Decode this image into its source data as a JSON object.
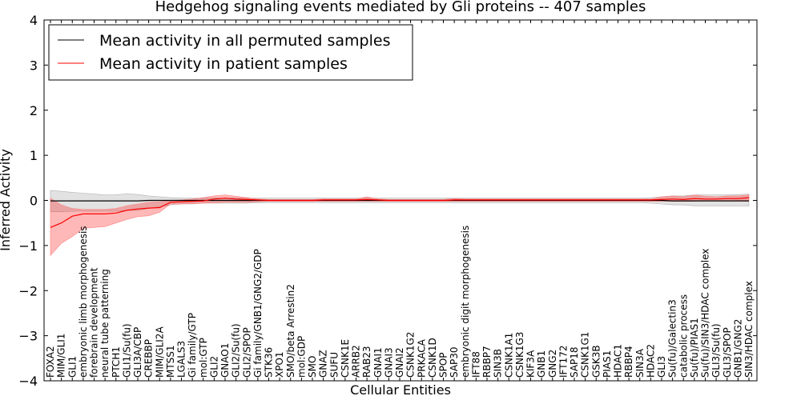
{
  "chart_data": {
    "type": "line",
    "title": "Hedgehog signaling events mediated by Gli proteins -- 407 samples",
    "xlabel": "Cellular Entities",
    "ylabel": "Inferred Activity",
    "ylim": [
      -4,
      4
    ],
    "yticks": [
      "−4",
      "−3",
      "−2",
      "−1",
      "0",
      "1",
      "2",
      "3",
      "4"
    ],
    "grid": false,
    "legend_position": "top-left",
    "categories": [
      "FOXA2",
      "MIM/GLI1",
      "GLI1",
      "embryonic limb morphogenesis",
      "forebrain development",
      "neural tube patterning",
      "PTCH1",
      "GLI1/Su(fu)",
      "GLI3A/CBP",
      "CREBBP",
      "MIM/GLI2A",
      "MTSS1",
      "LGALS3",
      "Gi family/GTP",
      "mol:GTP",
      "GLI2",
      "GNAO1",
      "GLI2/Su(fu)",
      "GLI2/SPOP",
      "Gi family/GNB1/GNG2/GDP",
      "STK36",
      "XPO1",
      "SMO/beta Arrestin2",
      "mol:GDP",
      "SMO",
      "GNAZ",
      "SUFU",
      "CSNK1E",
      "ARRB2",
      "RAB23",
      "GNAI1",
      "GNAI3",
      "GNAI2",
      "CSNK1G2",
      "PRKACA",
      "CSNK1D",
      "SPOP",
      "SAP30",
      "embryonic digit morphogenesis",
      "IFT88",
      "RBBP7",
      "SIN3B",
      "CSNK1A1",
      "CSNK1G3",
      "KIF3A",
      "GNB1",
      "GNG2",
      "IFT172",
      "SAP18",
      "CSNK1G1",
      "GSK3B",
      "PIAS1",
      "HDAC1",
      "RBBP4",
      "SIN3A",
      "HDAC2",
      "GLI3",
      "Su(fu)/Galectin3",
      "catabolic process",
      "Su(fu)/PIAS1",
      "Su(fu)/SIN3/HDAC complex",
      "GLI3/Su(fu)",
      "GLI3/SPOP",
      "GNB1/GNG2",
      "SIN3/HDAC complex"
    ],
    "series": [
      {
        "name": "Mean activity in all permuted samples",
        "color": "#000000",
        "values": [
          -0.01,
          -0.01,
          -0.01,
          -0.01,
          -0.01,
          -0.01,
          -0.01,
          -0.01,
          -0.01,
          0.0,
          0.0,
          0.0,
          0.0,
          0.0,
          0.0,
          0.0,
          0.0,
          0.0,
          0.0,
          0.0,
          0.0,
          0.0,
          0.0,
          0.0,
          0.0,
          0.0,
          0.0,
          0.0,
          0.0,
          0.0,
          0.0,
          0.0,
          0.0,
          0.0,
          0.0,
          0.0,
          0.0,
          0.0,
          0.0,
          0.0,
          0.0,
          0.0,
          0.0,
          0.0,
          0.0,
          0.0,
          0.0,
          0.0,
          0.0,
          0.0,
          0.0,
          0.0,
          0.0,
          0.0,
          0.0,
          0.0,
          0.0,
          -0.01,
          -0.01,
          -0.01,
          -0.01,
          -0.01,
          -0.01,
          -0.01,
          -0.01
        ],
        "band_lower": [
          -0.25,
          -0.25,
          -0.24,
          -0.24,
          -0.24,
          -0.24,
          -0.24,
          -0.22,
          -0.22,
          -0.18,
          -0.14,
          -0.1,
          -0.08,
          -0.08,
          -0.06,
          -0.06,
          -0.06,
          -0.06,
          -0.06,
          -0.05,
          -0.05,
          -0.05,
          -0.05,
          -0.05,
          -0.05,
          -0.05,
          -0.05,
          -0.05,
          -0.05,
          -0.05,
          -0.05,
          -0.05,
          -0.05,
          -0.05,
          -0.05,
          -0.05,
          -0.05,
          -0.05,
          -0.05,
          -0.05,
          -0.05,
          -0.05,
          -0.05,
          -0.05,
          -0.05,
          -0.05,
          -0.05,
          -0.05,
          -0.05,
          -0.05,
          -0.05,
          -0.05,
          -0.05,
          -0.05,
          -0.05,
          -0.06,
          -0.08,
          -0.1,
          -0.1,
          -0.12,
          -0.12,
          -0.12,
          -0.12,
          -0.12,
          -0.12
        ],
        "band_upper": [
          0.22,
          0.2,
          0.18,
          0.16,
          0.14,
          0.12,
          0.12,
          0.15,
          0.13,
          0.1,
          0.08,
          0.06,
          0.05,
          0.05,
          0.05,
          0.05,
          0.05,
          0.05,
          0.05,
          0.05,
          0.05,
          0.05,
          0.05,
          0.05,
          0.05,
          0.05,
          0.05,
          0.05,
          0.05,
          0.05,
          0.05,
          0.05,
          0.05,
          0.05,
          0.05,
          0.05,
          0.05,
          0.05,
          0.05,
          0.05,
          0.05,
          0.05,
          0.05,
          0.05,
          0.05,
          0.05,
          0.05,
          0.05,
          0.05,
          0.05,
          0.05,
          0.05,
          0.05,
          0.05,
          0.05,
          0.06,
          0.08,
          0.1,
          0.1,
          0.12,
          0.12,
          0.12,
          0.12,
          0.13,
          0.14
        ]
      },
      {
        "name": "Mean activity in patient samples",
        "color": "#ff0000",
        "values": [
          -0.6,
          -0.5,
          -0.35,
          -0.3,
          -0.3,
          -0.3,
          -0.28,
          -0.22,
          -0.19,
          -0.17,
          -0.16,
          -0.04,
          -0.03,
          -0.02,
          -0.01,
          0.03,
          0.05,
          0.03,
          0.02,
          0.01,
          0.0,
          0.0,
          0.0,
          0.0,
          0.0,
          0.01,
          0.01,
          0.01,
          0.01,
          0.02,
          0.01,
          0.0,
          0.0,
          0.0,
          0.0,
          0.0,
          0.0,
          0.01,
          0.01,
          0.01,
          0.01,
          0.01,
          0.01,
          0.01,
          0.01,
          0.01,
          0.01,
          0.01,
          0.01,
          0.01,
          0.01,
          0.01,
          0.01,
          0.01,
          0.01,
          0.01,
          0.02,
          0.03,
          0.02,
          0.04,
          0.03,
          0.03,
          0.04,
          0.04,
          0.06
        ],
        "band_lower": [
          -1.22,
          -0.95,
          -0.8,
          -0.62,
          -0.6,
          -0.58,
          -0.5,
          -0.42,
          -0.36,
          -0.34,
          -0.26,
          -0.08,
          -0.08,
          -0.07,
          -0.06,
          -0.05,
          -0.04,
          -0.04,
          -0.04,
          -0.03,
          -0.02,
          -0.02,
          -0.02,
          -0.02,
          -0.02,
          -0.02,
          -0.02,
          -0.02,
          -0.02,
          -0.02,
          -0.02,
          -0.02,
          -0.02,
          -0.02,
          -0.02,
          -0.02,
          -0.02,
          -0.02,
          -0.02,
          -0.02,
          -0.02,
          -0.02,
          -0.02,
          -0.02,
          -0.02,
          -0.02,
          -0.02,
          -0.02,
          -0.02,
          -0.02,
          -0.02,
          -0.02,
          -0.02,
          -0.02,
          -0.02,
          -0.02,
          -0.02,
          -0.02,
          -0.02,
          -0.02,
          -0.01,
          -0.01,
          -0.01,
          -0.0,
          0.0
        ],
        "band_upper": [
          0.05,
          -0.1,
          -0.18,
          -0.2,
          -0.2,
          -0.2,
          -0.18,
          -0.12,
          -0.08,
          -0.04,
          -0.03,
          0.0,
          0.01,
          0.03,
          0.06,
          0.1,
          0.12,
          0.09,
          0.06,
          0.03,
          0.02,
          0.02,
          0.02,
          0.02,
          0.02,
          0.03,
          0.03,
          0.03,
          0.03,
          0.08,
          0.03,
          0.02,
          0.02,
          0.02,
          0.02,
          0.02,
          0.02,
          0.04,
          0.03,
          0.03,
          0.03,
          0.03,
          0.03,
          0.03,
          0.03,
          0.03,
          0.03,
          0.03,
          0.03,
          0.03,
          0.03,
          0.03,
          0.03,
          0.03,
          0.03,
          0.03,
          0.08,
          0.1,
          0.08,
          0.12,
          0.09,
          0.08,
          0.1,
          0.1,
          0.12
        ]
      }
    ]
  }
}
